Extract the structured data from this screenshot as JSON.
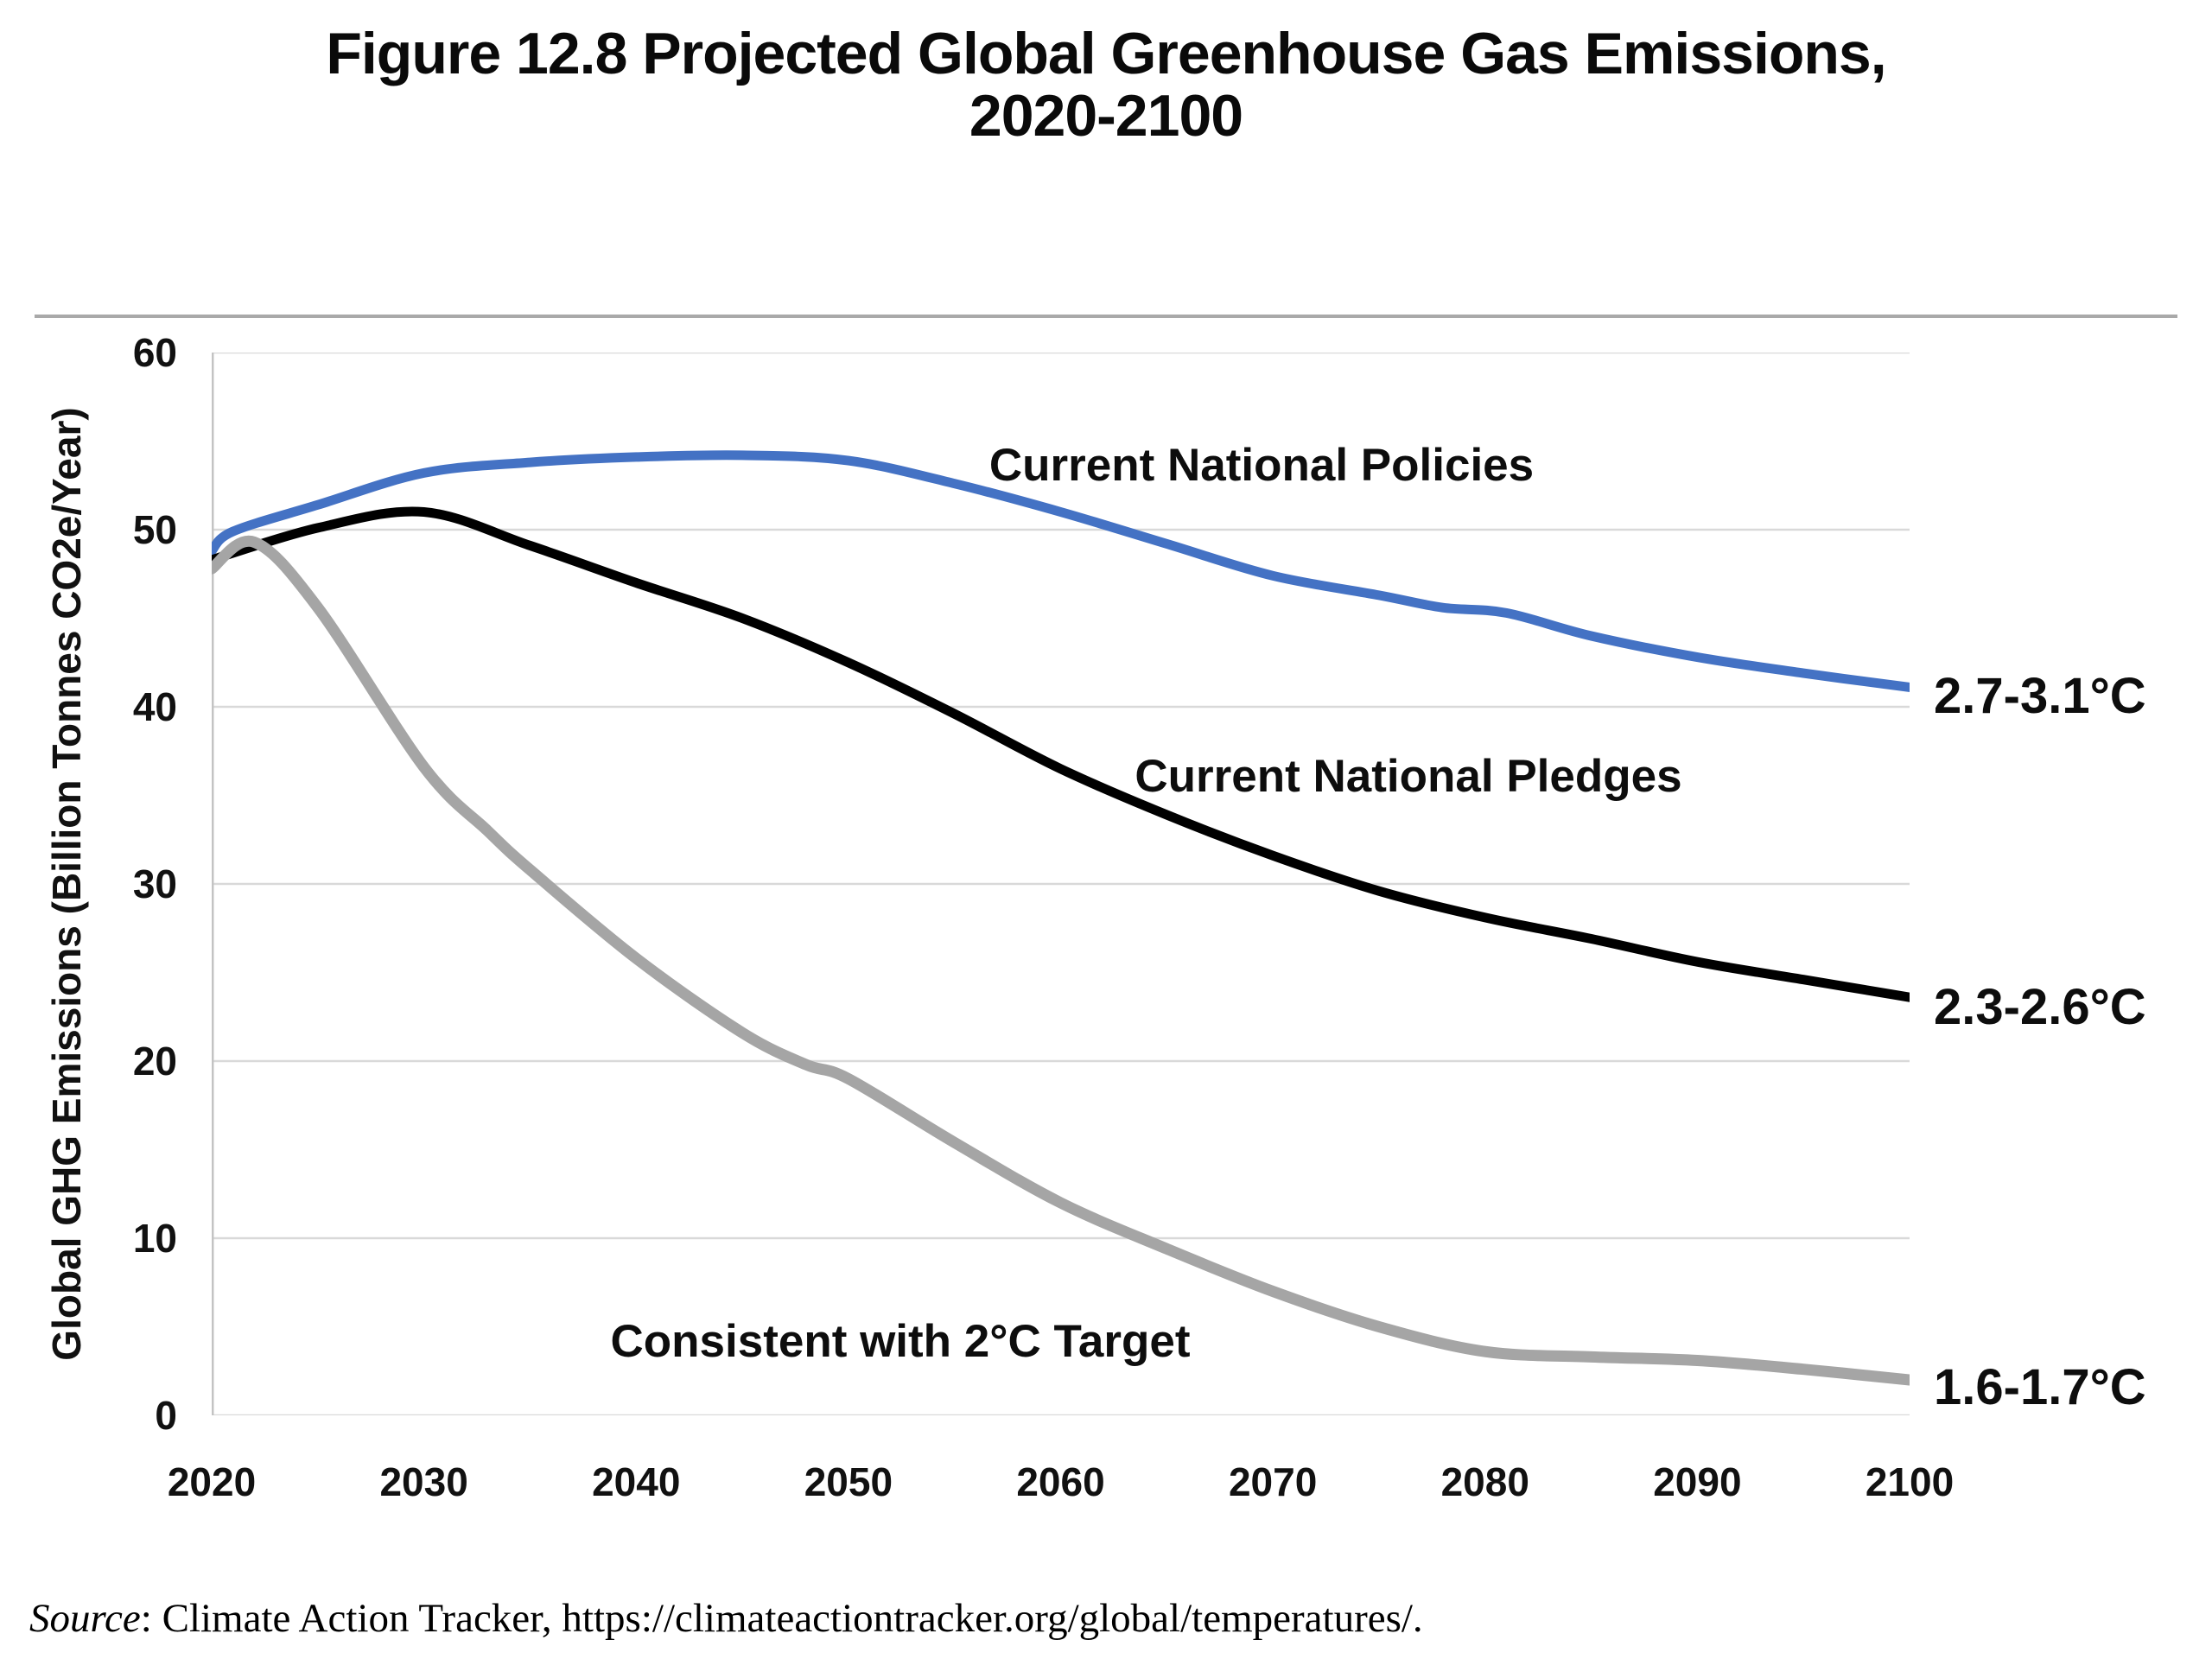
{
  "figure": {
    "title_lines": [
      "Figure 12.8 Projected Global Greenhouse Gas Emissions,",
      "2020-2100"
    ],
    "source_word": "Source",
    "source_rest": ": Climate Action Tracker, https://climateactiontracker.org/global/temperatures/."
  },
  "chart_data": {
    "type": "line",
    "title": "Figure 12.8 Projected Global Greenhouse Gas Emissions, 2020-2100",
    "xlabel": "",
    "ylabel": "Global GHG Emissions (Billion Tonnes CO2e/Year)",
    "xlim": [
      2020,
      2100
    ],
    "ylim": [
      0,
      60
    ],
    "x_ticks": [
      "2020",
      "2030",
      "2040",
      "2050",
      "2060",
      "2070",
      "2080",
      "2090",
      "2100"
    ],
    "y_ticks": [
      "0",
      "10",
      "20",
      "30",
      "40",
      "50",
      "60"
    ],
    "grid": "horizontal",
    "legend_position": "inline-labels",
    "gridline_color": "#d9d9d9",
    "axis_line_color": "#c3c3c3",
    "series": [
      {
        "name": "Current National Policies",
        "color": "#4472c4",
        "end_label": "2.7-3.1°C",
        "x": [
          2020,
          2021,
          2025,
          2030,
          2035,
          2040,
          2045,
          2050,
          2055,
          2060,
          2065,
          2070,
          2075,
          2078,
          2081,
          2085,
          2090,
          2095,
          2100
        ],
        "values": [
          48.8,
          49.9,
          51.4,
          53.2,
          53.8,
          54.1,
          54.2,
          53.9,
          52.6,
          51.0,
          49.2,
          47.4,
          46.3,
          45.6,
          45.3,
          44.0,
          42.8,
          41.9,
          41.1
        ]
      },
      {
        "name": "Current National Pledges",
        "color": "#000000",
        "end_label": "2.3-2.6°C",
        "x": [
          2020,
          2025,
          2030,
          2035,
          2040,
          2045,
          2050,
          2055,
          2060,
          2065,
          2070,
          2075,
          2080,
          2085,
          2090,
          2095,
          2100
        ],
        "values": [
          48.3,
          50.1,
          51.0,
          49.1,
          47.0,
          45.0,
          42.5,
          39.6,
          36.5,
          33.9,
          31.6,
          29.6,
          28.1,
          26.9,
          25.6,
          24.6,
          23.6
        ]
      },
      {
        "name": "Consistent with 2°C Target",
        "color": "#a5a5a5",
        "end_label": "1.6-1.7°C",
        "x": [
          2020,
          2022,
          2025,
          2030,
          2033,
          2035,
          2040,
          2045,
          2048,
          2050,
          2055,
          2060,
          2065,
          2070,
          2075,
          2080,
          2085,
          2090,
          2095,
          2100
        ],
        "values": [
          47.8,
          49.3,
          45.6,
          36.6,
          33.0,
          30.8,
          25.8,
          21.6,
          19.8,
          19.0,
          15.4,
          12.0,
          9.4,
          7.0,
          5.0,
          3.6,
          3.3,
          3.1,
          2.6,
          2.0
        ]
      }
    ]
  }
}
